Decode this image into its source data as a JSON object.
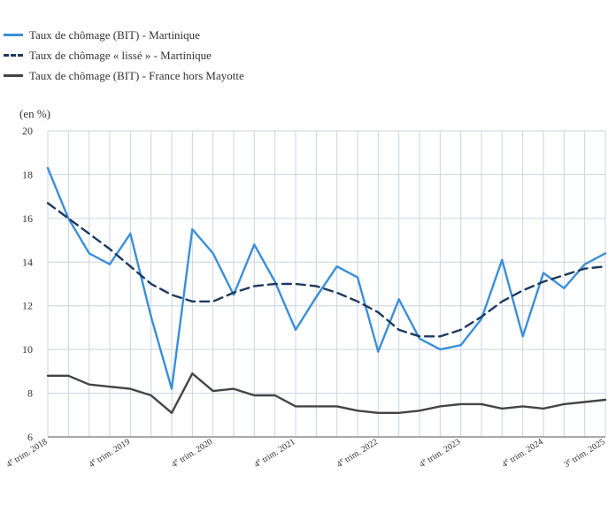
{
  "chart_data": {
    "type": "line",
    "ylabel": "(en %)",
    "ylim": [
      6,
      20
    ],
    "yticks": [
      6,
      8,
      10,
      12,
      14,
      16,
      18,
      20
    ],
    "grid": true,
    "legend_position": "top-left",
    "x_tick_labels": [
      {
        "index": 0,
        "num": "4",
        "sup": "e",
        "rest": " trim. 2018"
      },
      {
        "index": 4,
        "num": "4",
        "sup": "e",
        "rest": " trim. 2019"
      },
      {
        "index": 8,
        "num": "4",
        "sup": "e",
        "rest": " trim. 2020"
      },
      {
        "index": 12,
        "num": "4",
        "sup": "e",
        "rest": " trim. 2021"
      },
      {
        "index": 16,
        "num": "4",
        "sup": "e",
        "rest": " trim. 2022"
      },
      {
        "index": 20,
        "num": "4",
        "sup": "e",
        "rest": " trim. 2023"
      },
      {
        "index": 24,
        "num": "4",
        "sup": "e",
        "rest": " trim. 2024"
      },
      {
        "index": 27,
        "num": "3",
        "sup": "e",
        "rest": " trim. 2025"
      }
    ],
    "x_count": 28,
    "series": [
      {
        "name": "Taux de chômage (BIT) - Martinique",
        "color": "#3a8fd9",
        "dash": "solid",
        "values": [
          18.3,
          16.0,
          14.4,
          13.9,
          15.3,
          11.5,
          8.2,
          15.5,
          14.4,
          12.5,
          14.8,
          13.1,
          10.9,
          12.4,
          13.8,
          13.3,
          9.9,
          12.3,
          10.5,
          10.0,
          10.2,
          11.4,
          14.1,
          10.6,
          13.5,
          12.8,
          13.9,
          14.4
        ]
      },
      {
        "name": "Taux de chômage « lissé » - Martinique",
        "color": "#1e3a5f",
        "dash": "dashed",
        "values": [
          16.7,
          16.0,
          15.3,
          14.6,
          13.8,
          13.0,
          12.5,
          12.2,
          12.2,
          12.6,
          12.9,
          13.0,
          13.0,
          12.9,
          12.6,
          12.2,
          11.7,
          10.9,
          10.6,
          10.6,
          10.9,
          11.5,
          12.2,
          12.7,
          13.1,
          13.4,
          13.7,
          13.8
        ]
      },
      {
        "name": "Taux de chômage (BIT) - France hors Mayotte",
        "color": "#444444",
        "dash": "solid",
        "values": [
          8.8,
          8.8,
          8.4,
          8.3,
          8.2,
          7.9,
          7.1,
          8.9,
          8.1,
          8.2,
          7.9,
          7.9,
          7.4,
          7.4,
          7.4,
          7.2,
          7.1,
          7.1,
          7.2,
          7.4,
          7.5,
          7.5,
          7.3,
          7.4,
          7.3,
          7.5,
          7.6,
          7.7
        ]
      }
    ]
  }
}
